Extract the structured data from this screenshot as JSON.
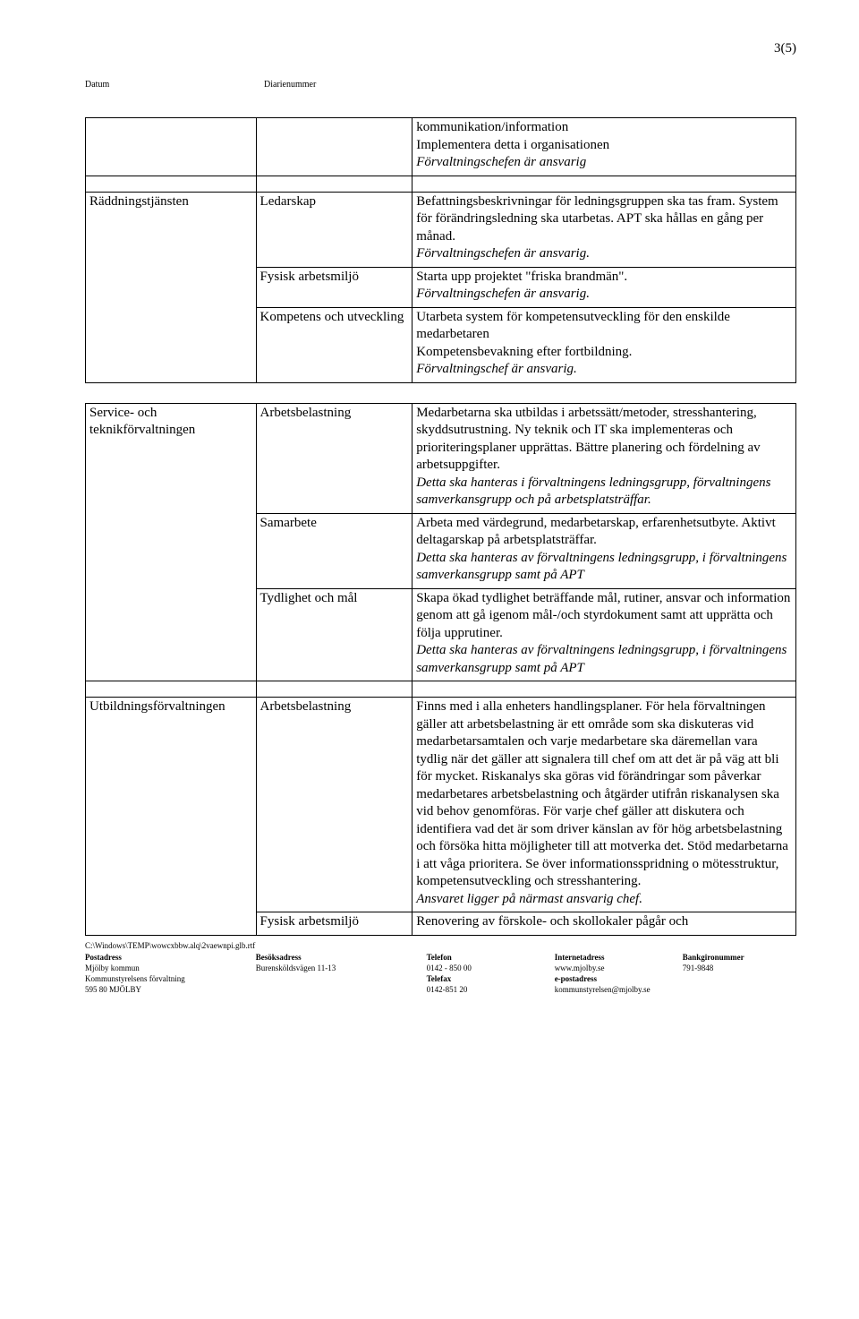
{
  "page_indicator": "3(5)",
  "header": {
    "datum_label": "Datum",
    "diarienummer_label": "Diarienummer"
  },
  "intro_row": {
    "text1": "kommunikation/information",
    "text2": "Implementera detta i organisationen",
    "text3_italic": "Förvaltningschefen är ansvarig"
  },
  "section1": {
    "org": "Räddningstjänsten",
    "rows": [
      {
        "label": "Ledarskap",
        "body_parts": [
          {
            "text": "Befattningsbeskrivningar för ledningsgruppen ska tas fram. System för förändringsledning ska utarbetas. APT ska hållas en gång per månad.",
            "italic": false
          },
          {
            "text": "Förvaltningschefen är ansvarig.",
            "italic": true
          }
        ]
      },
      {
        "label": "Fysisk arbetsmiljö",
        "body_parts": [
          {
            "text": "Starta upp projektet \"friska brandmän\".",
            "italic": false
          },
          {
            "text": "Förvaltningschefen är ansvarig.",
            "italic": true
          }
        ]
      },
      {
        "label": "Kompetens och utveckling",
        "body_parts": [
          {
            "text": "Utarbeta system för kompetensutveckling för den enskilde medarbetaren",
            "italic": false
          },
          {
            "text": "Kompetensbevakning efter fortbildning.",
            "italic": false
          },
          {
            "text": " Förvaltningschef är ansvarig.",
            "italic": true
          }
        ]
      }
    ]
  },
  "section2": {
    "org": "Service- och teknikförvaltningen",
    "rows": [
      {
        "label": "Arbetsbelastning",
        "body_parts": [
          {
            "text": "Medarbetarna ska utbildas i arbetssätt/metoder, stresshantering, skyddsutrustning. Ny teknik och IT ska implementeras och prioriteringsplaner upprättas. Bättre planering och fördelning av arbetsuppgifter.",
            "italic": false
          },
          {
            "text": "Detta ska hanteras i förvaltningens ledningsgrupp, förvaltningens samverkansgrupp och på arbetsplatsträffar.",
            "italic": true
          }
        ]
      },
      {
        "label": "Samarbete",
        "body_parts": [
          {
            "text": "Arbeta med värdegrund, medarbetarskap, erfarenhetsutbyte. Aktivt deltagarskap på arbetsplatsträffar. ",
            "italic": false
          },
          {
            "text": "Detta ska hanteras av förvaltningens ledningsgrupp, i förvaltningens samverkansgrupp samt på APT",
            "italic": true
          }
        ]
      },
      {
        "label": "Tydlighet och mål",
        "body_parts": [
          {
            "text": "Skapa ökad tydlighet beträffande mål, rutiner, ansvar och information genom att gå igenom mål-/och styrdokument samt att upprätta och följa upprutiner.",
            "italic": false
          },
          {
            "text": "Detta ska hanteras av förvaltningens ledningsgrupp, i förvaltningens samverkansgrupp samt på APT",
            "italic": true
          }
        ]
      }
    ]
  },
  "section3": {
    "org": "Utbildningsförvaltningen",
    "rows": [
      {
        "label": "Arbetsbelastning",
        "body_parts": [
          {
            "text": "Finns med i alla enheters handlingsplaner. För hela förvaltningen gäller att arbetsbelastning är ett område som ska diskuteras vid medarbetarsamtalen och varje medarbetare ska däremellan vara tydlig när det gäller att signalera till chef om att det är på väg att bli för mycket. Riskanalys ska göras vid förändringar som påverkar medarbetares arbetsbelastning och åtgärder utifrån riskanalysen ska vid behov genomföras. För varje chef gäller att diskutera och identifiera vad det är som driver känslan av för hög arbetsbelastning och försöka hitta möjligheter till att motverka det. Stöd medarbetarna i att våga prioritera. Se över informationsspridning o mötesstruktur, kompetensutveckling och stresshantering.",
            "italic": false
          },
          {
            "text": "Ansvaret ligger på närmast ansvarig chef.",
            "italic": true
          }
        ]
      },
      {
        "label": "Fysisk arbetsmiljö",
        "body_parts": [
          {
            "text": "Renovering av förskole- och skollokaler pågår och",
            "italic": false
          }
        ]
      }
    ]
  },
  "footer": {
    "path": "C:\\Windows\\TEMP\\wowcxbbw.alq\\2vaewnpi.glb.rtf",
    "headers": [
      "Postadress",
      "Besöksadress",
      "Telefon",
      "Internetadress",
      "Bankgironummer"
    ],
    "row1": [
      "Mjölby kommun",
      "Burensköldsvägen 11-13",
      "0142 - 850 00",
      "www.mjolby.se",
      "791-9848"
    ],
    "row2": [
      "Kommunstyrelsens förvaltning",
      "",
      "Telefax",
      "e-postadress",
      ""
    ],
    "row3": [
      "595 80 MJÖLBY",
      "",
      "0142-851 20",
      "kommunstyrelsen@mjolby.se",
      ""
    ]
  }
}
